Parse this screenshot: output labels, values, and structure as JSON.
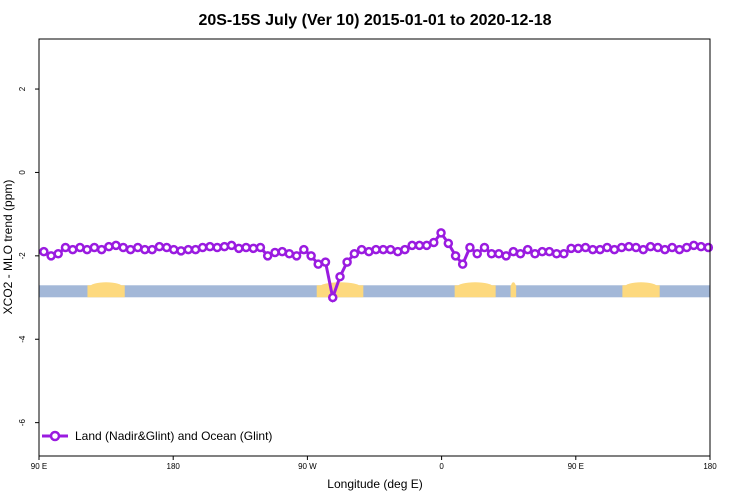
{
  "chart_data": {
    "type": "line",
    "title": "20S-15S July (Ver 10)   2015-01-01 to 2020-12-18",
    "xlabel": "Longitude (deg E)",
    "ylabel": "XCO2 - MLO trend (ppm)",
    "xlim": [
      90,
      450
    ],
    "ylim": [
      -6.8,
      3.2
    ],
    "x_ticks": [
      {
        "value": 90,
        "label": "90 E"
      },
      {
        "value": 162,
        "label": "180"
      },
      {
        "value": 234,
        "label": "90 W"
      },
      {
        "value": 306,
        "label": "0"
      },
      {
        "value": 378,
        "label": "90 E"
      },
      {
        "value": 450,
        "label": "180"
      }
    ],
    "y_ticks": [
      {
        "value": 2,
        "label": "2"
      },
      {
        "value": 0,
        "label": "0"
      },
      {
        "value": -2,
        "label": "-2"
      },
      {
        "value": -4,
        "label": "-4"
      },
      {
        "value": -6,
        "label": "-6"
      }
    ],
    "land_ocean_strip": {
      "y": -2.85,
      "ocean_color": "#a3b8d8",
      "land_color": "#fdd97e",
      "land_ranges": [
        [
          116,
          136
        ],
        [
          239,
          264
        ],
        [
          313,
          335
        ],
        [
          343,
          346
        ],
        [
          403,
          423
        ]
      ]
    },
    "series": [
      {
        "name": "Land (Nadir&Glint) and Ocean (Glint)",
        "color": "#9a1be0",
        "x": [
          92.6,
          96.5,
          100.3,
          104.2,
          108.1,
          112.0,
          115.8,
          119.7,
          123.6,
          127.5,
          131.3,
          135.2,
          139.1,
          143.0,
          146.8,
          150.7,
          154.6,
          158.5,
          162.3,
          166.2,
          170.1,
          174.0,
          177.8,
          181.7,
          185.6,
          189.5,
          193.3,
          197.2,
          201.1,
          205.0,
          208.8,
          212.7,
          216.6,
          220.5,
          224.3,
          228.2,
          232.1,
          236.0,
          239.8,
          243.7,
          247.6,
          251.5,
          255.3,
          259.2,
          263.1,
          267.0,
          270.8,
          274.7,
          278.6,
          282.5,
          286.3,
          290.2,
          294.1,
          298.0,
          301.8,
          305.7,
          309.6,
          313.5,
          317.3,
          321.2,
          325.1,
          329.0,
          332.8,
          336.7,
          340.6,
          344.5,
          348.3,
          352.2,
          356.1,
          360.0,
          363.8,
          367.7,
          371.6,
          375.5,
          379.3,
          383.2,
          387.1,
          391.0,
          394.8,
          398.7,
          402.6,
          406.5,
          410.3,
          414.2,
          418.1,
          422.0,
          425.8,
          429.7,
          433.6,
          437.5,
          441.3,
          445.2,
          449.1
        ],
        "values": [
          -1.9,
          -2.0,
          -1.95,
          -1.8,
          -1.85,
          -1.8,
          -1.85,
          -1.8,
          -1.85,
          -1.78,
          -1.75,
          -1.8,
          -1.85,
          -1.8,
          -1.85,
          -1.85,
          -1.78,
          -1.8,
          -1.85,
          -1.88,
          -1.85,
          -1.85,
          -1.8,
          -1.78,
          -1.8,
          -1.78,
          -1.75,
          -1.82,
          -1.8,
          -1.82,
          -1.8,
          -2.0,
          -1.92,
          -1.9,
          -1.95,
          -2.0,
          -1.85,
          -2.0,
          -2.2,
          -2.15,
          -3.0,
          -2.5,
          -2.15,
          -1.95,
          -1.85,
          -1.9,
          -1.85,
          -1.85,
          -1.85,
          -1.9,
          -1.85,
          -1.75,
          -1.75,
          -1.75,
          -1.68,
          -1.45,
          -1.7,
          -2.0,
          -2.2,
          -1.8,
          -1.95,
          -1.8,
          -1.95,
          -1.95,
          -2.0,
          -1.9,
          -1.95,
          -1.85,
          -1.95,
          -1.9,
          -1.9,
          -1.95,
          -1.95,
          -1.82,
          -1.82,
          -1.8,
          -1.85,
          -1.85,
          -1.8,
          -1.85,
          -1.8,
          -1.78,
          -1.8,
          -1.85,
          -1.78,
          -1.8,
          -1.85,
          -1.8,
          -1.85,
          -1.8,
          -1.75,
          -1.78,
          -1.8
        ]
      }
    ],
    "legend": {
      "position": "bottom-left"
    },
    "grid": false
  }
}
